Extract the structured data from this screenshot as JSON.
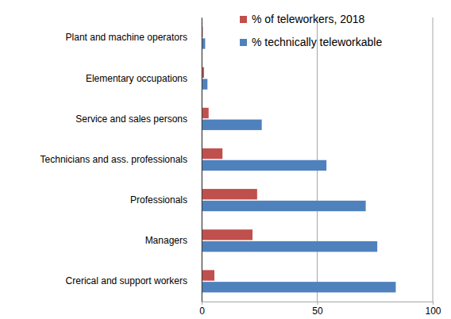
{
  "chart_data": {
    "type": "bar",
    "orientation": "horizontal",
    "categories": [
      "Plant and machine operators",
      "Elementary occupations",
      "Service and sales persons",
      "Technicians and ass. professionals",
      "Professionals",
      "Managers",
      "Crerical and support workers"
    ],
    "series": [
      {
        "name": "% of teleworkers, 2018",
        "color": "#c0504d",
        "values": [
          0.5,
          1,
          3,
          9,
          24,
          22,
          5.5
        ]
      },
      {
        "name": "% technically teleworkable",
        "color": "#4f81bd",
        "values": [
          1.5,
          2.5,
          26,
          54,
          71,
          76,
          84
        ]
      }
    ],
    "xlim": [
      0,
      100
    ],
    "xticks": [
      0,
      50,
      100
    ],
    "grid": true,
    "legend": "top-right"
  }
}
